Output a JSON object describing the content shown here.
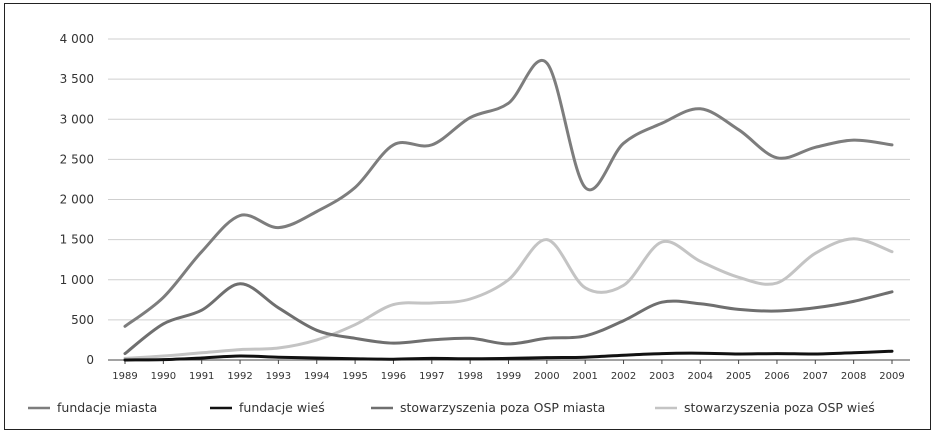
{
  "chart_data": {
    "type": "line",
    "title": "",
    "xlabel": "",
    "ylabel": "",
    "ylim": [
      0,
      4000
    ],
    "yticks": [
      0,
      500,
      1000,
      1500,
      2000,
      2500,
      3000,
      3500,
      4000
    ],
    "ytick_labels": [
      "0",
      "500",
      "1 000",
      "1 500",
      "2 000",
      "2 500",
      "3 000",
      "3 500",
      "4 000"
    ],
    "x": [
      "1989",
      "1990",
      "1991",
      "1992",
      "1993",
      "1994",
      "1995",
      "1996",
      "1997",
      "1998",
      "1999",
      "2000",
      "2001",
      "2002",
      "2003",
      "2004",
      "2005",
      "2006",
      "2007",
      "2008",
      "2009"
    ],
    "grid": true,
    "legend_position": "bottom",
    "series": [
      {
        "name": "fundacje miasta",
        "color": "#7d7d7d",
        "values": [
          420,
          780,
          1350,
          1800,
          1650,
          1850,
          2150,
          2680,
          2680,
          3020,
          3200,
          3700,
          2150,
          2700,
          2950,
          3130,
          2870,
          2520,
          2650,
          2740,
          2680
        ]
      },
      {
        "name": "fundacje wieś",
        "color": "#111111",
        "values": [
          0,
          5,
          25,
          50,
          35,
          25,
          15,
          10,
          20,
          15,
          20,
          30,
          35,
          60,
          80,
          85,
          75,
          80,
          75,
          90,
          110
        ]
      },
      {
        "name": "stowarzyszenia poza OSP miasta",
        "color": "#6f6f6f",
        "values": [
          80,
          450,
          620,
          950,
          650,
          370,
          270,
          210,
          250,
          270,
          200,
          270,
          300,
          490,
          720,
          700,
          630,
          610,
          650,
          730,
          850
        ]
      },
      {
        "name": "stowarzyszenia poza OSP wieś",
        "color": "#c4c4c4",
        "values": [
          20,
          50,
          90,
          130,
          150,
          250,
          440,
          690,
          710,
          760,
          1000,
          1500,
          900,
          930,
          1470,
          1230,
          1030,
          960,
          1330,
          1510,
          1350
        ]
      }
    ]
  }
}
